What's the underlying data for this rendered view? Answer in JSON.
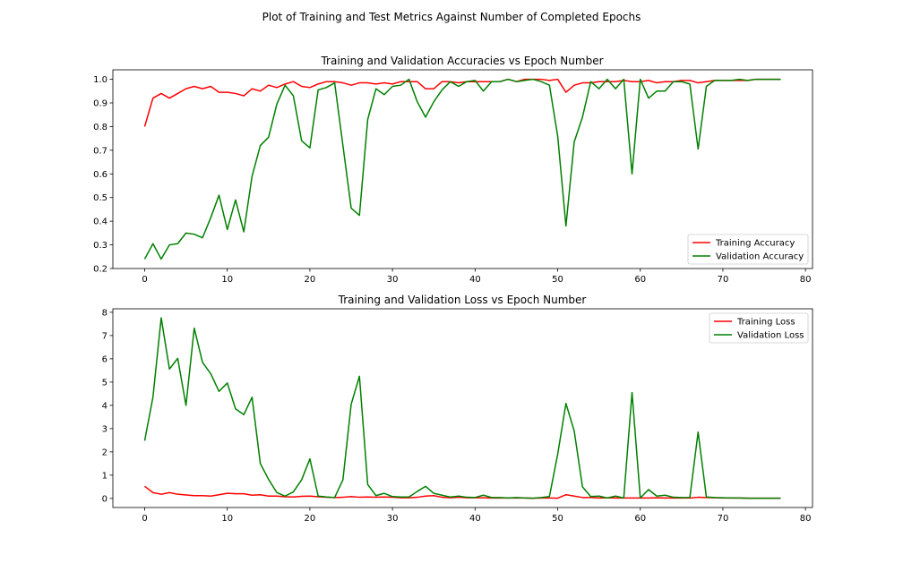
{
  "figure": {
    "suptitle": "Plot of Training and Test Metrics Against Number of Completed Epochs"
  },
  "colors": {
    "training": "#ff0000",
    "validation": "#008000"
  },
  "chart_data": [
    {
      "type": "line",
      "title": "Training and Validation Accuracies vs Epoch Number",
      "xlabel": "",
      "ylabel": "",
      "xlim": [
        -3.85,
        80.85
      ],
      "ylim": [
        0.2,
        1.04
      ],
      "xticks": [
        0,
        10,
        20,
        30,
        40,
        50,
        60,
        70,
        80
      ],
      "yticks": [
        0.2,
        0.3,
        0.4,
        0.5,
        0.6,
        0.7,
        0.8,
        0.9,
        1.0
      ],
      "ytick_labels": [
        "0.2",
        "0.3",
        "0.4",
        "0.5",
        "0.6",
        "0.7",
        "0.8",
        "0.9",
        "1.0"
      ],
      "legend_position": "lower-right",
      "grid": false,
      "x": [
        0,
        1,
        2,
        3,
        4,
        5,
        6,
        7,
        8,
        9,
        10,
        11,
        12,
        13,
        14,
        15,
        16,
        17,
        18,
        19,
        20,
        21,
        22,
        23,
        24,
        25,
        26,
        27,
        28,
        29,
        30,
        31,
        32,
        33,
        34,
        35,
        36,
        37,
        38,
        39,
        40,
        41,
        42,
        43,
        44,
        45,
        46,
        47,
        48,
        49,
        50,
        51,
        52,
        53,
        54,
        55,
        56,
        57,
        58,
        59,
        60,
        61,
        62,
        63,
        64,
        65,
        66,
        67,
        68,
        69,
        70,
        71,
        72,
        73,
        74,
        75,
        76,
        77
      ],
      "series": [
        {
          "name": "Training Accuracy",
          "color": "#ff0000",
          "values": [
            0.8,
            0.92,
            0.94,
            0.92,
            0.94,
            0.96,
            0.97,
            0.96,
            0.97,
            0.945,
            0.945,
            0.94,
            0.93,
            0.96,
            0.95,
            0.975,
            0.965,
            0.98,
            0.99,
            0.97,
            0.965,
            0.98,
            0.99,
            0.99,
            0.985,
            0.975,
            0.985,
            0.985,
            0.98,
            0.985,
            0.98,
            0.99,
            0.99,
            0.99,
            0.96,
            0.96,
            0.99,
            0.99,
            0.985,
            0.99,
            0.99,
            0.99,
            0.99,
            0.99,
            1.0,
            0.99,
            1.0,
            1.0,
            1.0,
            0.995,
            1.0,
            0.945,
            0.975,
            0.985,
            0.985,
            0.99,
            0.99,
            0.99,
            0.995,
            0.99,
            0.99,
            0.995,
            0.985,
            0.99,
            0.99,
            0.995,
            0.995,
            0.985,
            0.99,
            0.995,
            0.995,
            0.995,
            0.995,
            0.995,
            1.0,
            1.0,
            1.0,
            1.0
          ]
        },
        {
          "name": "Validation Accuracy",
          "color": "#008000",
          "values": [
            0.24,
            0.305,
            0.24,
            0.3,
            0.305,
            0.35,
            0.345,
            0.33,
            0.415,
            0.51,
            0.365,
            0.49,
            0.355,
            0.59,
            0.72,
            0.755,
            0.895,
            0.975,
            0.93,
            0.74,
            0.71,
            0.955,
            0.965,
            0.985,
            0.72,
            0.455,
            0.425,
            0.83,
            0.96,
            0.935,
            0.97,
            0.975,
            1.0,
            0.905,
            0.84,
            0.905,
            0.955,
            0.99,
            0.97,
            0.99,
            0.995,
            0.95,
            0.99,
            0.99,
            1.0,
            0.99,
            0.995,
            1.0,
            0.99,
            0.975,
            0.76,
            0.38,
            0.735,
            0.84,
            0.99,
            0.96,
            1.0,
            0.96,
            1.0,
            0.6,
            1.0,
            0.92,
            0.95,
            0.95,
            0.99,
            0.99,
            0.98,
            0.705,
            0.97,
            0.995,
            0.995,
            0.995,
            1.0,
            0.995,
            1.0,
            1.0,
            1.0,
            1.0
          ]
        }
      ]
    },
    {
      "type": "line",
      "title": "Training and Validation Loss vs Epoch Number",
      "xlabel": "",
      "ylabel": "",
      "xlim": [
        -3.85,
        80.85
      ],
      "ylim": [
        -0.39,
        8.15
      ],
      "xticks": [
        0,
        10,
        20,
        30,
        40,
        50,
        60,
        70,
        80
      ],
      "yticks": [
        0,
        1,
        2,
        3,
        4,
        5,
        6,
        7,
        8
      ],
      "ytick_labels": [
        "0",
        "1",
        "2",
        "3",
        "4",
        "5",
        "6",
        "7",
        "8"
      ],
      "legend_position": "upper-right",
      "grid": false,
      "x": [
        0,
        1,
        2,
        3,
        4,
        5,
        6,
        7,
        8,
        9,
        10,
        11,
        12,
        13,
        14,
        15,
        16,
        17,
        18,
        19,
        20,
        21,
        22,
        23,
        24,
        25,
        26,
        27,
        28,
        29,
        30,
        31,
        32,
        33,
        34,
        35,
        36,
        37,
        38,
        39,
        40,
        41,
        42,
        43,
        44,
        45,
        46,
        47,
        48,
        49,
        50,
        51,
        52,
        53,
        54,
        55,
        56,
        57,
        58,
        59,
        60,
        61,
        62,
        63,
        64,
        65,
        66,
        67,
        68,
        69,
        70,
        71,
        72,
        73,
        74,
        75,
        76,
        77
      ],
      "series": [
        {
          "name": "Training Loss",
          "color": "#ff0000",
          "values": [
            0.52,
            0.25,
            0.18,
            0.25,
            0.18,
            0.15,
            0.12,
            0.12,
            0.1,
            0.16,
            0.22,
            0.2,
            0.2,
            0.14,
            0.16,
            0.1,
            0.1,
            0.07,
            0.06,
            0.09,
            0.1,
            0.07,
            0.05,
            0.04,
            0.05,
            0.08,
            0.05,
            0.06,
            0.05,
            0.06,
            0.05,
            0.03,
            0.03,
            0.05,
            0.1,
            0.12,
            0.05,
            0.03,
            0.05,
            0.03,
            0.03,
            0.03,
            0.02,
            0.02,
            0.02,
            0.02,
            0.02,
            0.01,
            0.02,
            0.02,
            0.01,
            0.16,
            0.1,
            0.04,
            0.04,
            0.02,
            0.03,
            0.02,
            0.02,
            0.02,
            0.02,
            0.02,
            0.03,
            0.02,
            0.02,
            0.02,
            0.02,
            0.05,
            0.04,
            0.03,
            0.02,
            0.02,
            0.02,
            0.01,
            0.01,
            0.01,
            0.01,
            0.01
          ]
        },
        {
          "name": "Validation Loss",
          "color": "#008000",
          "values": [
            2.48,
            4.35,
            7.76,
            5.56,
            6.02,
            4.0,
            7.32,
            5.85,
            5.36,
            4.6,
            4.96,
            3.85,
            3.6,
            4.35,
            1.5,
            0.82,
            0.25,
            0.1,
            0.28,
            0.8,
            1.7,
            0.1,
            0.06,
            0.04,
            0.8,
            4.05,
            5.25,
            0.6,
            0.12,
            0.22,
            0.08,
            0.06,
            0.06,
            0.3,
            0.52,
            0.22,
            0.14,
            0.06,
            0.1,
            0.05,
            0.04,
            0.14,
            0.04,
            0.04,
            0.02,
            0.04,
            0.02,
            0.01,
            0.04,
            0.08,
            1.9,
            4.08,
            2.9,
            0.5,
            0.08,
            0.1,
            0.02,
            0.1,
            0.02,
            4.55,
            0.02,
            0.38,
            0.1,
            0.14,
            0.05,
            0.04,
            0.04,
            2.85,
            0.06,
            0.04,
            0.03,
            0.02,
            0.02,
            0.01,
            0.01,
            0.01,
            0.01,
            0.01
          ]
        }
      ]
    }
  ]
}
